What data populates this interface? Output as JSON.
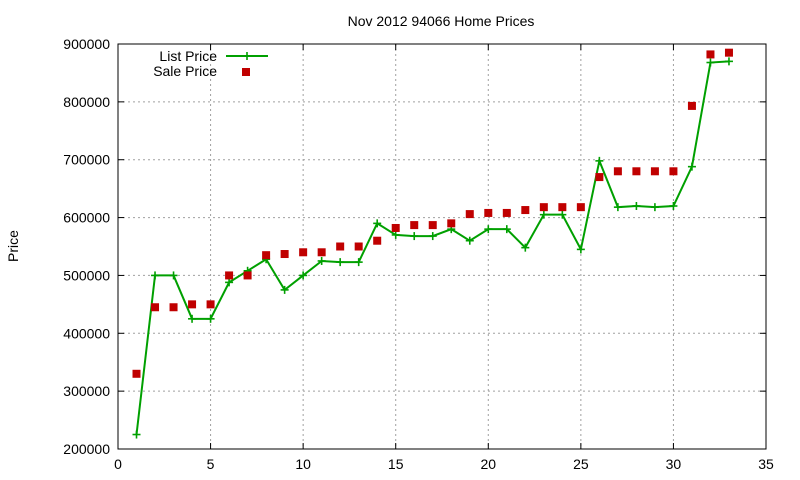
{
  "chart_data": {
    "type": "line",
    "title": "Nov 2012 94066 Home Prices",
    "xlabel": "",
    "ylabel": "Price",
    "xlim": [
      0,
      35
    ],
    "ylim": [
      200000,
      900000
    ],
    "xticks": [
      0,
      5,
      10,
      15,
      20,
      25,
      30,
      35
    ],
    "yticks": [
      200000,
      300000,
      400000,
      500000,
      600000,
      700000,
      800000,
      900000
    ],
    "grid": true,
    "legend_position": "top-left",
    "series": [
      {
        "name": "List Price",
        "style": "lines+crosses",
        "color": "#00a000",
        "x": [
          1,
          2,
          3,
          4,
          5,
          6,
          7,
          8,
          9,
          10,
          11,
          12,
          13,
          14,
          15,
          16,
          17,
          18,
          19,
          20,
          21,
          22,
          23,
          24,
          25,
          26,
          27,
          28,
          29,
          30,
          31,
          32,
          33
        ],
        "values": [
          225000,
          500000,
          500000,
          425000,
          425000,
          488000,
          508000,
          528000,
          475000,
          500000,
          525000,
          523000,
          523000,
          590000,
          570000,
          568000,
          568000,
          580000,
          560000,
          580000,
          580000,
          548000,
          605000,
          605000,
          545000,
          698000,
          618000,
          620000,
          618000,
          620000,
          688000,
          868000,
          870000
        ]
      },
      {
        "name": "Sale Price",
        "style": "squares",
        "color": "#c00000",
        "x": [
          1,
          2,
          3,
          4,
          5,
          6,
          7,
          8,
          9,
          10,
          11,
          12,
          13,
          14,
          15,
          16,
          17,
          18,
          19,
          20,
          21,
          22,
          23,
          24,
          25,
          26,
          27,
          28,
          29,
          30,
          31,
          32,
          33
        ],
        "values": [
          330000,
          445000,
          445000,
          450000,
          450000,
          500000,
          500000,
          535000,
          537000,
          540000,
          540000,
          550000,
          550000,
          560000,
          582000,
          587000,
          587000,
          590000,
          606000,
          608000,
          608000,
          613000,
          618000,
          618000,
          618000,
          670000,
          680000,
          680000,
          680000,
          680000,
          793000,
          882000,
          885000
        ]
      }
    ]
  }
}
